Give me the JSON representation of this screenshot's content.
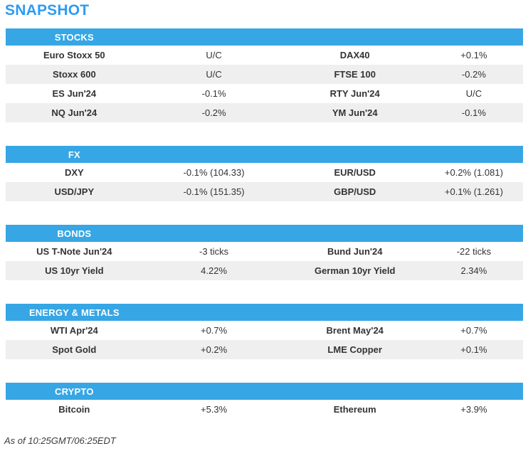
{
  "page_title": "SNAPSHOT",
  "colors": {
    "title_blue": "#2E9BF0",
    "section_header_blue": "#36A6E4",
    "stripe_gray": "#EFEFEF",
    "text_dark": "#333333"
  },
  "sections": [
    {
      "title": "STOCKS",
      "rows": [
        {
          "name1": "Euro Stoxx 50",
          "value1": "U/C",
          "name2": "DAX40",
          "value2": "+0.1%"
        },
        {
          "name1": "Stoxx 600",
          "value1": "U/C",
          "name2": "FTSE 100",
          "value2": "-0.2%"
        },
        {
          "name1": "ES Jun'24",
          "value1": "-0.1%",
          "name2": "RTY Jun'24",
          "value2": "U/C"
        },
        {
          "name1": "NQ Jun'24",
          "value1": "-0.2%",
          "name2": "YM Jun'24",
          "value2": "-0.1%"
        }
      ]
    },
    {
      "title": "FX",
      "rows": [
        {
          "name1": "DXY",
          "value1": "-0.1% (104.33)",
          "name2": "EUR/USD",
          "value2": "+0.2% (1.081)"
        },
        {
          "name1": "USD/JPY",
          "value1": "-0.1% (151.35)",
          "name2": "GBP/USD",
          "value2": "+0.1% (1.261)"
        }
      ]
    },
    {
      "title": "BONDS",
      "rows": [
        {
          "name1": "US T-Note Jun'24",
          "value1": "-3 ticks",
          "name2": "Bund Jun'24",
          "value2": "-22 ticks"
        },
        {
          "name1": "US 10yr Yield",
          "value1": "4.22%",
          "name2": "German 10yr Yield",
          "value2": "2.34%"
        }
      ]
    },
    {
      "title": "ENERGY & METALS",
      "rows": [
        {
          "name1": "WTI Apr'24",
          "value1": "+0.7%",
          "name2": "Brent May'24",
          "value2": "+0.7%"
        },
        {
          "name1": "Spot Gold",
          "value1": "+0.2%",
          "name2": "LME Copper",
          "value2": "+0.1%"
        }
      ]
    },
    {
      "title": "CRYPTO",
      "rows": [
        {
          "name1": "Bitcoin",
          "value1": "+5.3%",
          "name2": "Ethereum",
          "value2": "+3.9%"
        }
      ]
    }
  ],
  "footer": "As of 10:25GMT/06:25EDT"
}
